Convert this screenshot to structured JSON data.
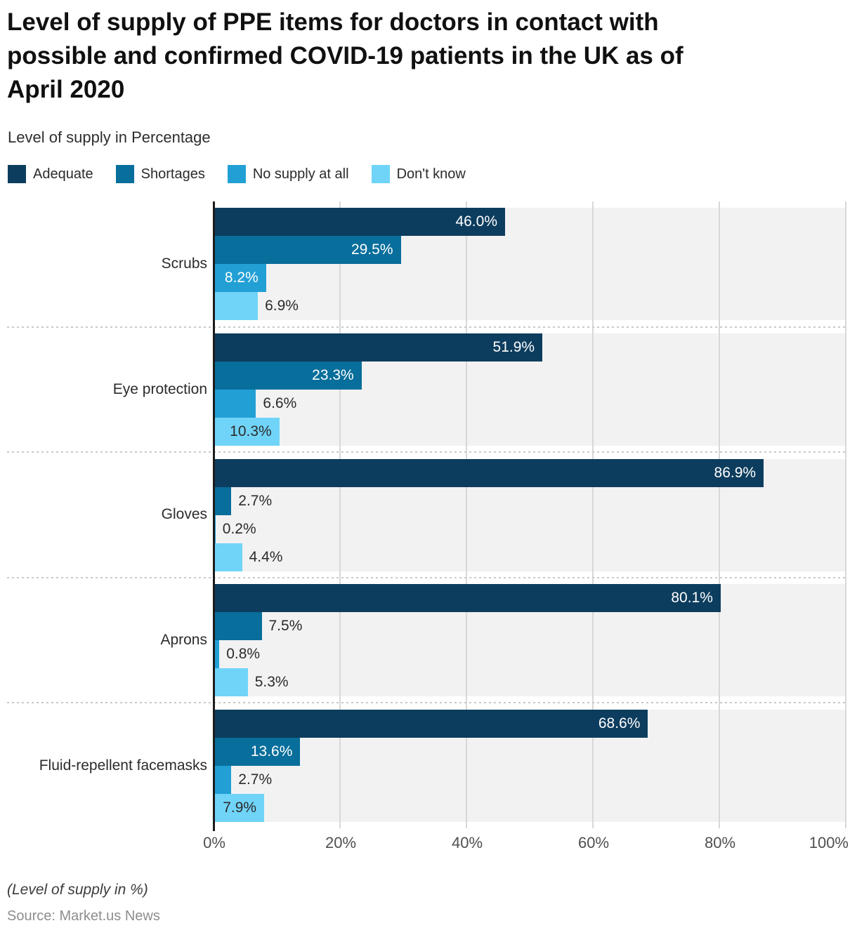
{
  "header": {
    "title_lines": [
      "Level of supply of PPE items for doctors in contact with",
      "possible and confirmed COVID-19 patients in the UK as of",
      "April 2020"
    ],
    "subtitle": "Level of supply in Percentage"
  },
  "footer": {
    "note": "(Level of supply in %)",
    "source": "Source: Market.us News"
  },
  "colors": {
    "plot_background": "#f2f2f2",
    "gridline": "#d8d8d8",
    "separator": "#c9c9c9",
    "axis_line": "#1c1c1c",
    "value_label_dark": "#2b2b2b",
    "value_label_light": "#ffffff",
    "category_label": "#2b2b2b",
    "tick_label": "#4f4f4f"
  },
  "chart_data": {
    "type": "bar",
    "orientation": "horizontal",
    "title": "Level of supply of PPE items for doctors in contact with possible and confirmed COVID-19 patients in the UK as of April 2020",
    "subtitle": "Level of supply in Percentage",
    "categories": [
      "Scrubs",
      "Eye protection",
      "Gloves",
      "Aprons",
      "Fluid-repellent facemasks"
    ],
    "series": [
      {
        "name": "Adequate",
        "color": "#0d3d5e",
        "values": [
          46.0,
          51.9,
          86.9,
          80.1,
          68.6
        ]
      },
      {
        "name": "Shortages",
        "color": "#086e9b",
        "values": [
          29.5,
          23.3,
          2.7,
          7.5,
          13.6
        ]
      },
      {
        "name": "No supply at all",
        "color": "#22a0d5",
        "values": [
          8.2,
          6.6,
          0.2,
          0.8,
          2.7
        ]
      },
      {
        "name": "Don't know",
        "color": "#70d4f8",
        "values": [
          6.9,
          10.3,
          4.4,
          5.3,
          7.9
        ]
      }
    ],
    "xticks": [
      "0%",
      "20%",
      "40%",
      "60%",
      "80%",
      "100%"
    ],
    "xlim": [
      0,
      100
    ],
    "value_suffix": "%",
    "value_decimals": 1,
    "legend_position": "top-left",
    "grid": true
  }
}
